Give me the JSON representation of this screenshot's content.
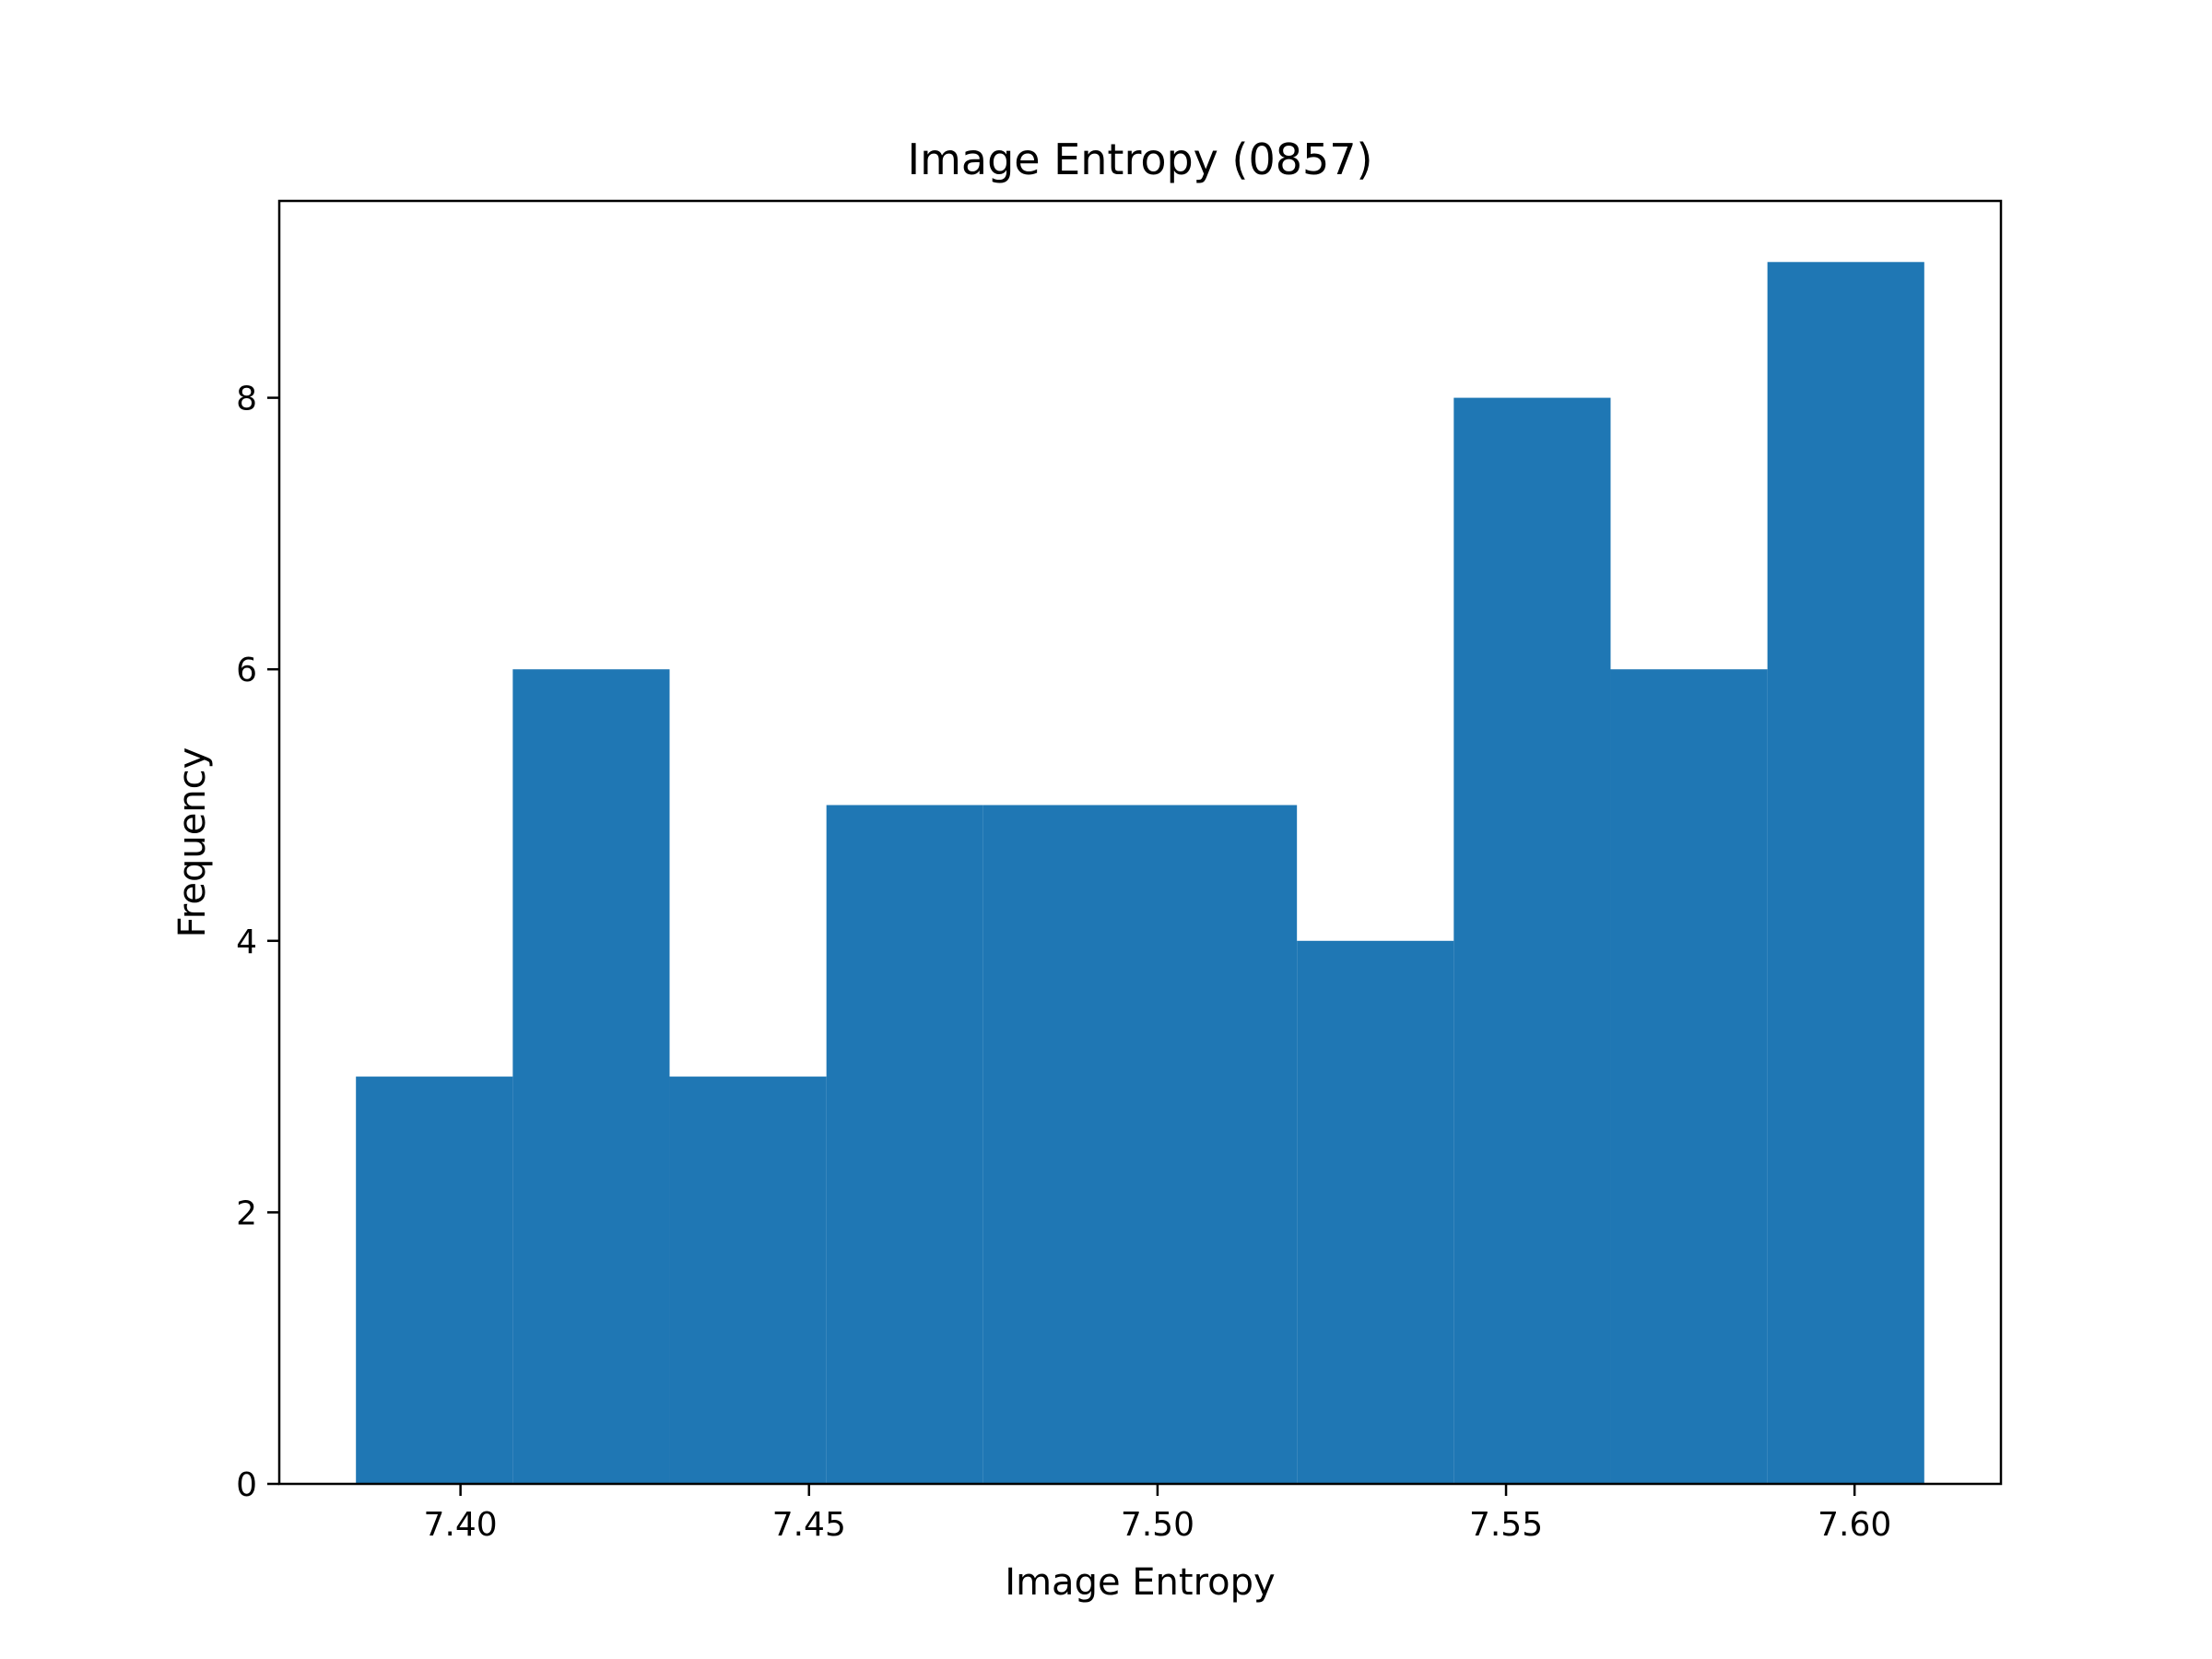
{
  "chart_data": {
    "type": "bar",
    "title": "Image Entropy (0857)",
    "xlabel": "Image Entropy",
    "ylabel": "Frequency",
    "bin_edges": [
      7.385,
      7.4075,
      7.43,
      7.4525,
      7.475,
      7.4975,
      7.52,
      7.5425,
      7.565,
      7.5875,
      7.61
    ],
    "values": [
      3,
      6,
      3,
      5,
      5,
      5,
      4,
      8,
      6,
      9
    ],
    "xlim": [
      7.374,
      7.621
    ],
    "ylim": [
      0,
      9.45
    ],
    "x_ticks": [
      7.4,
      7.45,
      7.5,
      7.55,
      7.6
    ],
    "x_tick_labels": [
      "7.40",
      "7.45",
      "7.50",
      "7.55",
      "7.60"
    ],
    "y_ticks": [
      0,
      2,
      4,
      6,
      8
    ],
    "y_tick_labels": [
      "0",
      "2",
      "4",
      "6",
      "8"
    ],
    "bar_color": "#1f77b4",
    "grid": false,
    "legend": "none"
  }
}
